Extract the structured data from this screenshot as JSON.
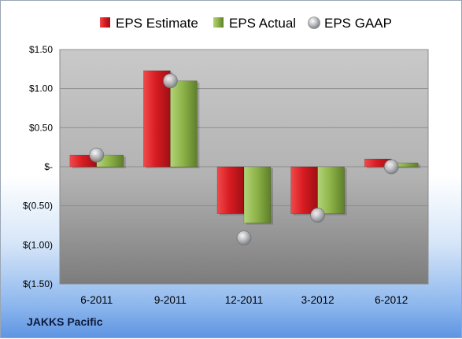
{
  "chart_data": {
    "type": "bar",
    "title": "",
    "xlabel": "",
    "ylabel": "",
    "categories": [
      "6-2011",
      "9-2011",
      "12-2011",
      "3-2012",
      "6-2012"
    ],
    "series": [
      {
        "name": "EPS Estimate",
        "kind": "bar",
        "color": "#e3262c",
        "values": [
          0.15,
          1.23,
          -0.6,
          -0.6,
          0.1
        ]
      },
      {
        "name": "EPS Actual",
        "kind": "bar",
        "color": "#97be55",
        "values": [
          0.15,
          1.1,
          -0.72,
          -0.6,
          0.05
        ]
      },
      {
        "name": "EPS GAAP",
        "kind": "marker",
        "color": "#b9bcc0",
        "values": [
          0.15,
          1.1,
          -0.91,
          -0.62,
          0.0
        ]
      }
    ],
    "ylim": [
      -1.5,
      1.5
    ],
    "ytick_values": [
      1.5,
      1.0,
      0.5,
      0,
      -0.5,
      -1.0,
      -1.5
    ],
    "ytick_labels": [
      "$1.50",
      "$1.00",
      "$0.50",
      "$-",
      "$(0.50)",
      "$(1.00)",
      "$(1.50)"
    ],
    "grid": true,
    "legend_position": "top"
  },
  "footer": {
    "company": "JAKKS Pacific"
  }
}
